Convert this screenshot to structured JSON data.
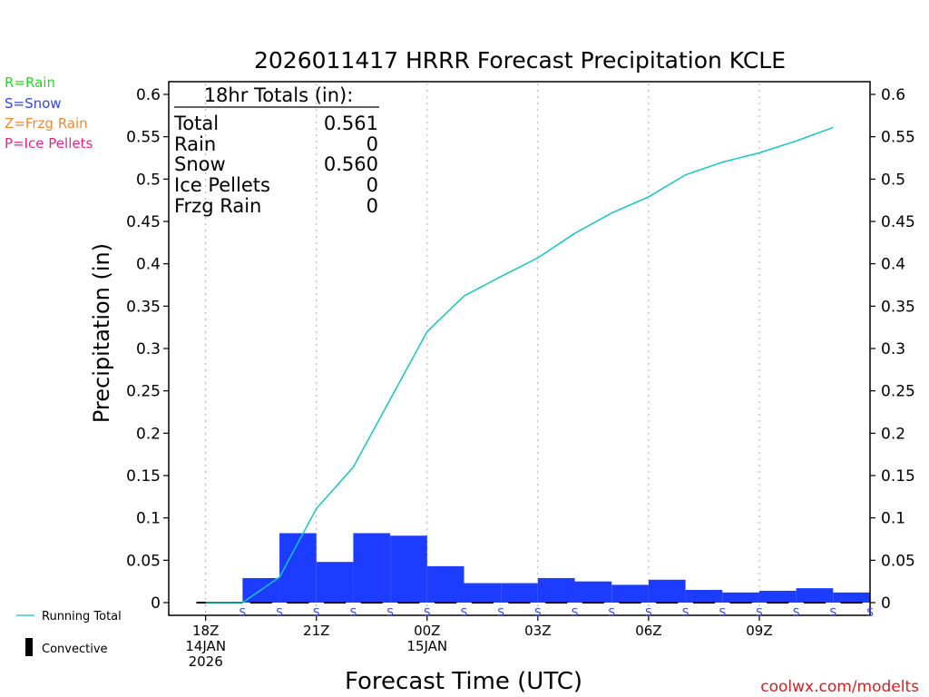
{
  "chart_data": {
    "type": "bar",
    "title": "2026011417 HRRR Forecast Precipitation KCLE",
    "xlabel": "Forecast Time (UTC)",
    "ylabel": "Precipitation (in)",
    "ylim": [
      -0.015,
      0.615
    ],
    "xlim": [
      -1.0,
      18.0
    ],
    "yticks": [
      0,
      0.05,
      0.1,
      0.15,
      0.2,
      0.25,
      0.3,
      0.35,
      0.4,
      0.45,
      0.5,
      0.55,
      0.6
    ],
    "ytick_labels": [
      "0",
      "0.05",
      "0.1",
      "0.15",
      "0.2",
      "0.25",
      "0.3",
      "0.35",
      "0.4",
      "0.45",
      "0.5",
      "0.55",
      "0.6"
    ],
    "xticks": [
      {
        "hour": 0,
        "lines": [
          "18Z",
          "14JAN",
          "2026"
        ]
      },
      {
        "hour": 3,
        "lines": [
          "21Z"
        ]
      },
      {
        "hour": 6,
        "lines": [
          "00Z",
          "15JAN"
        ]
      },
      {
        "hour": 9,
        "lines": [
          "03Z"
        ]
      },
      {
        "hour": 12,
        "lines": [
          "06Z"
        ]
      },
      {
        "hour": 15,
        "lines": [
          "09Z"
        ]
      }
    ],
    "gridlines_hours": [
      0,
      3,
      6,
      9,
      12,
      15
    ],
    "hours": [
      1,
      2,
      3,
      4,
      5,
      6,
      7,
      8,
      9,
      10,
      11,
      12,
      13,
      14,
      15,
      16,
      17,
      18
    ],
    "hourly_precip": [
      0.0,
      0.029,
      0.082,
      0.048,
      0.082,
      0.079,
      0.043,
      0.023,
      0.023,
      0.029,
      0.025,
      0.021,
      0.027,
      0.015,
      0.012,
      0.014,
      0.017,
      0.012
    ],
    "precip_type": [
      "S",
      "S",
      "S",
      "S",
      "S",
      "S",
      "S",
      "S",
      "S",
      "S",
      "S",
      "S",
      "S",
      "S",
      "S",
      "S",
      "S",
      "S"
    ],
    "running_total_x": [
      0,
      1,
      2,
      3,
      4,
      5,
      6,
      7,
      8,
      9,
      10,
      11,
      12,
      13,
      14,
      15,
      16,
      17
    ],
    "running_total": [
      0.0,
      0.0,
      0.03,
      0.111,
      0.16,
      0.24,
      0.32,
      0.362,
      0.385,
      0.407,
      0.436,
      0.46,
      0.479,
      0.505,
      0.52,
      0.531,
      0.545,
      0.561
    ],
    "bar_color": "#1c3cff",
    "line_color": "#12c8c0",
    "convective_color": "#000000",
    "series": [
      {
        "name": "Hourly Snow",
        "values": [
          0.0,
          0.029,
          0.082,
          0.048,
          0.082,
          0.079,
          0.043,
          0.023,
          0.023,
          0.029,
          0.025,
          0.021,
          0.027,
          0.015,
          0.012,
          0.014,
          0.017,
          0.012
        ]
      },
      {
        "name": "Running Total",
        "values": [
          0.0,
          0.0,
          0.03,
          0.111,
          0.16,
          0.24,
          0.32,
          0.362,
          0.385,
          0.407,
          0.436,
          0.46,
          0.479,
          0.505,
          0.52,
          0.531,
          0.545,
          0.561
        ]
      }
    ]
  },
  "totals": {
    "header": "18hr Totals (in):",
    "rows": [
      {
        "label": "Total",
        "value": "0.561"
      },
      {
        "label": "Rain",
        "value": "0"
      },
      {
        "label": "Snow",
        "value": "0.560"
      },
      {
        "label": "Ice Pellets",
        "value": "0"
      },
      {
        "label": "Frzg Rain",
        "value": "0"
      }
    ]
  },
  "type_legend": [
    {
      "text": "R=Rain",
      "color": "#22dd22"
    },
    {
      "text": "S=Snow",
      "color": "#3344ee"
    },
    {
      "text": "Z=Frzg Rain",
      "color": "#f08a30"
    },
    {
      "text": "P=Ice Pellets",
      "color": "#ee2288"
    }
  ],
  "legend": {
    "running_total": "Running Total",
    "convective": "Convective"
  },
  "watermark": "coolwx.com/modelts",
  "watermark_color": "#d42020"
}
